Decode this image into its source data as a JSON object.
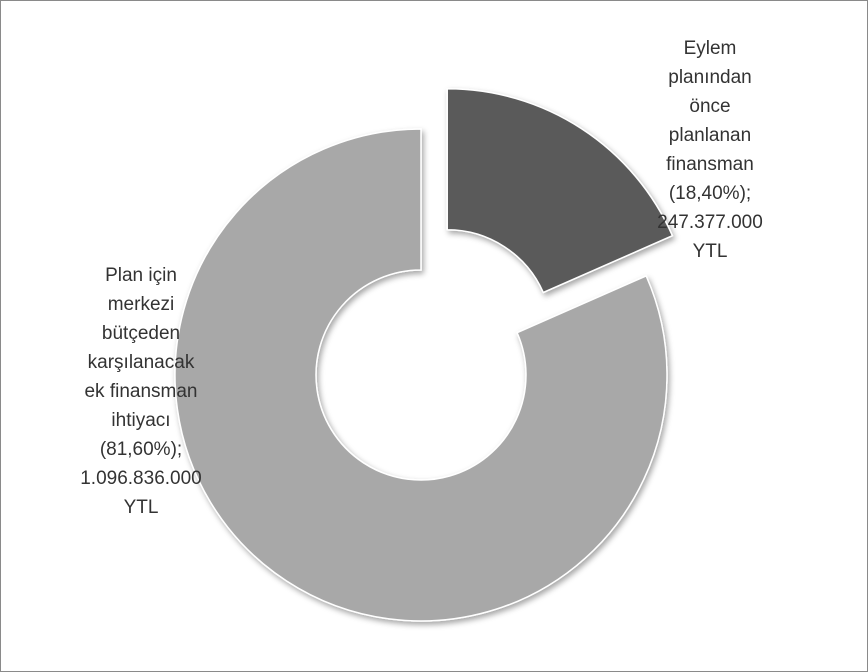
{
  "chart_data": {
    "type": "donut",
    "categories": [
      "Eylem planından önce planlanan finansman",
      "Plan için merkezi bütçeden karşılanacak ek finansman ihtiyacı"
    ],
    "values": [
      18.4,
      81.6
    ],
    "value_labels": [
      "(18,40%);",
      "(81,60%);"
    ],
    "amount_labels": [
      "247.377.000 YTL",
      "1.096.836.000 YTL"
    ],
    "colors": [
      "#5a5a5a",
      "#a8a8a8"
    ],
    "exploded": [
      true,
      false
    ]
  }
}
